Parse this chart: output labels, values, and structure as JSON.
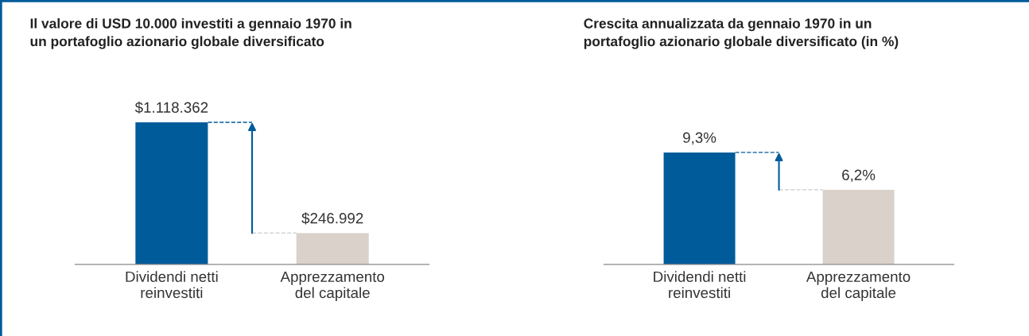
{
  "chart_data": [
    {
      "type": "bar",
      "title": "Il valore di USD 10.000 investiti a gennaio 1970 in\nun portafoglio azionario globale diversificato",
      "categories": [
        "Dividendi netti\nreinvestiti",
        "Apprezzamento\ndel capitale"
      ],
      "values": [
        1118362,
        246992
      ],
      "colors": [
        "#005b9b",
        "#d9d1ca"
      ],
      "value_labels": [
        "$1.118.362",
        "$246.992"
      ]
    },
    {
      "type": "bar",
      "title": "Crescita annualizzata da gennaio 1970 in un\nportafoglio azionario globale diversificato (in %)",
      "categories": [
        "Dividendi netti\nreinvestiti",
        "Apprezzamento\ndel capitale"
      ],
      "values": [
        9.3,
        6.2
      ],
      "colors": [
        "#005b9b",
        "#d9d1ca"
      ],
      "value_labels": [
        "9,3%",
        "6,2%"
      ]
    }
  ]
}
